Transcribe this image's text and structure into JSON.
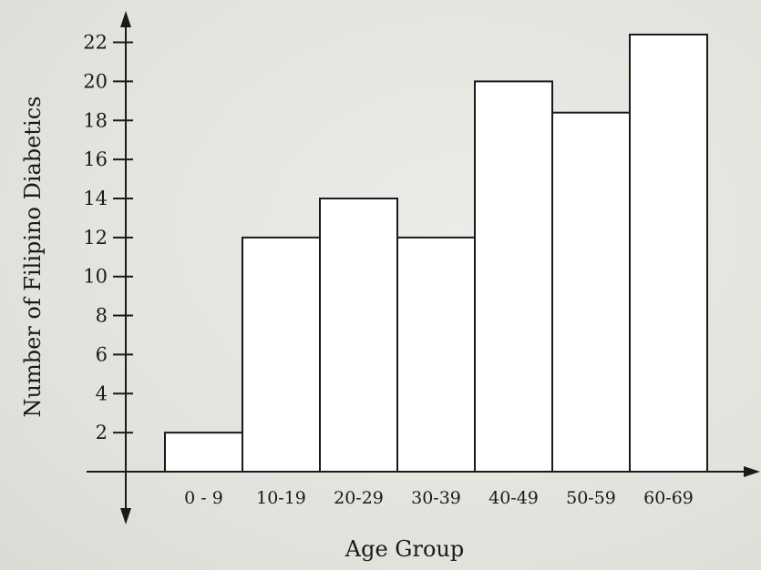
{
  "chart_data": {
    "type": "bar",
    "categories": [
      "0 - 9",
      "10-19",
      "20-29",
      "30-39",
      "40-49",
      "50-59",
      "60-69"
    ],
    "values": [
      2,
      12,
      14,
      12,
      20,
      18.4,
      22.4
    ],
    "xlabel": "Age Group",
    "ylabel": "Number of Filipino Diabetics",
    "yticks": [
      2,
      4,
      6,
      8,
      10,
      12,
      14,
      16,
      18,
      20,
      22
    ],
    "ylim": [
      0,
      22.4
    ],
    "grid": false,
    "bar_fill": "#ffffff",
    "bar_stroke": "#1a1a1a",
    "axis_color": "#1a1a1a"
  }
}
